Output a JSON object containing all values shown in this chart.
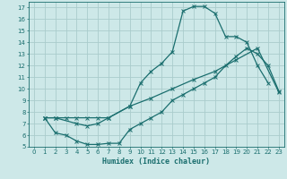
{
  "xlabel": "Humidex (Indice chaleur)",
  "bg_color": "#cde8e8",
  "line_color": "#1a6e6e",
  "grid_color": "#aacccc",
  "xlim": [
    -0.5,
    23.5
  ],
  "ylim": [
    5,
    17.5
  ],
  "xticks": [
    0,
    1,
    2,
    3,
    4,
    5,
    6,
    7,
    8,
    9,
    10,
    11,
    12,
    13,
    14,
    15,
    16,
    17,
    18,
    19,
    20,
    21,
    22,
    23
  ],
  "yticks": [
    5,
    6,
    7,
    8,
    9,
    10,
    11,
    12,
    13,
    14,
    15,
    16,
    17
  ],
  "curve1_x": [
    1,
    2,
    3,
    4,
    5,
    6,
    7,
    9,
    10,
    11,
    12,
    13,
    14,
    15,
    16,
    17,
    18,
    19,
    20,
    21,
    22
  ],
  "curve1_y": [
    7.5,
    7.5,
    7.5,
    7.5,
    7.5,
    7.5,
    7.5,
    8.5,
    10.5,
    11.5,
    12.2,
    13.2,
    16.7,
    17.1,
    17.1,
    16.5,
    14.5,
    14.5,
    14.0,
    12.0,
    10.5
  ],
  "curve2_x": [
    1,
    2,
    4,
    5,
    6,
    7,
    9,
    11,
    13,
    15,
    17,
    19,
    21,
    23
  ],
  "curve2_y": [
    7.5,
    7.5,
    7.0,
    6.8,
    7.0,
    7.5,
    8.5,
    9.2,
    10.0,
    10.8,
    11.5,
    12.5,
    13.5,
    9.7
  ],
  "curve3_x": [
    1,
    2,
    3,
    4,
    5,
    6,
    7,
    8,
    9,
    10,
    11,
    12,
    13,
    14,
    15,
    16,
    17,
    18,
    19,
    20,
    21,
    22,
    23
  ],
  "curve3_y": [
    7.5,
    6.2,
    6.0,
    5.5,
    5.2,
    5.2,
    5.3,
    5.3,
    6.5,
    7.0,
    7.5,
    8.0,
    9.0,
    9.5,
    10.0,
    10.5,
    11.0,
    12.0,
    12.8,
    13.5,
    13.0,
    12.0,
    9.8
  ]
}
